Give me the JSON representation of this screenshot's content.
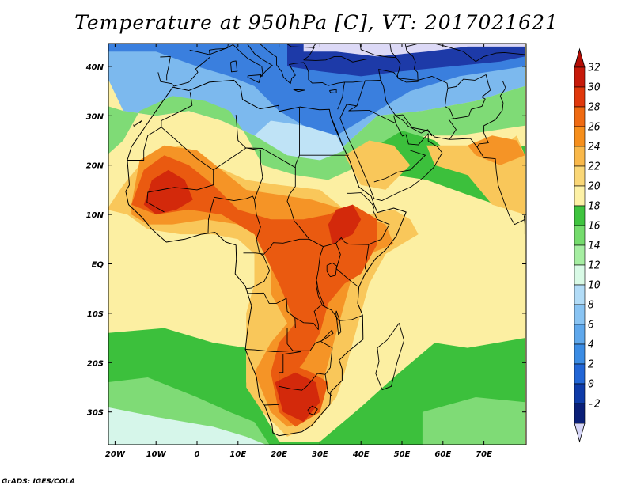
{
  "title": "Temperature at 950hPa [C], VT: 2017021621",
  "credit": "GrADS: IGES/COLA",
  "lat_labels": [
    {
      "deg": 40,
      "text": "40N"
    },
    {
      "deg": 30,
      "text": "30N"
    },
    {
      "deg": 20,
      "text": "20N"
    },
    {
      "deg": 10,
      "text": "10N"
    },
    {
      "deg": 0,
      "text": "EQ"
    },
    {
      "deg": -10,
      "text": "10S"
    },
    {
      "deg": -20,
      "text": "20S"
    },
    {
      "deg": -30,
      "text": "30S"
    }
  ],
  "lon_labels": [
    {
      "deg": -20,
      "text": "20W"
    },
    {
      "deg": -10,
      "text": "10W"
    },
    {
      "deg": 0,
      "text": "0"
    },
    {
      "deg": 10,
      "text": "10E"
    },
    {
      "deg": 20,
      "text": "20E"
    },
    {
      "deg": 30,
      "text": "30E"
    },
    {
      "deg": 40,
      "text": "40E"
    },
    {
      "deg": 50,
      "text": "50E"
    },
    {
      "deg": 60,
      "text": "60E"
    },
    {
      "deg": 70,
      "text": "70E"
    }
  ],
  "colorbar": {
    "levels": [
      "32",
      "30",
      "28",
      "26",
      "24",
      "22",
      "20",
      "18",
      "16",
      "14",
      "12",
      "10",
      "8",
      "6",
      "4",
      "2",
      "0",
      "-2"
    ],
    "colors_top_to_bottom": [
      "#c71a0a",
      "#e0380c",
      "#ef6a12",
      "#f68f1c",
      "#f9b84a",
      "#fad777",
      "#fdf1a6",
      "#3fc43f",
      "#75dc6d",
      "#a6eea2",
      "#d9fae6",
      "#b2dcf7",
      "#89c4f3",
      "#5fa8ec",
      "#3b8ce4",
      "#2266d6",
      "#0e3ba8",
      "#0a1f78"
    ],
    "top_arrow_color": "#b50d05",
    "bottom_arrow_color": "#d6d6f8"
  },
  "field_colors": {
    "lavender": "#dcd9f6",
    "navy": "#1d3aa8",
    "blue": "#3a7fde",
    "lightblue": "#7cb9ee",
    "paleblue": "#bfe3f6",
    "cyan": "#d6f6ea",
    "green": "#3cc03c",
    "lightgreen": "#7fdb76",
    "yellow": "#fcefa2",
    "lightorange": "#f9c75a",
    "orange": "#f59426",
    "redorange": "#ea5a10",
    "red": "#d3290b"
  }
}
